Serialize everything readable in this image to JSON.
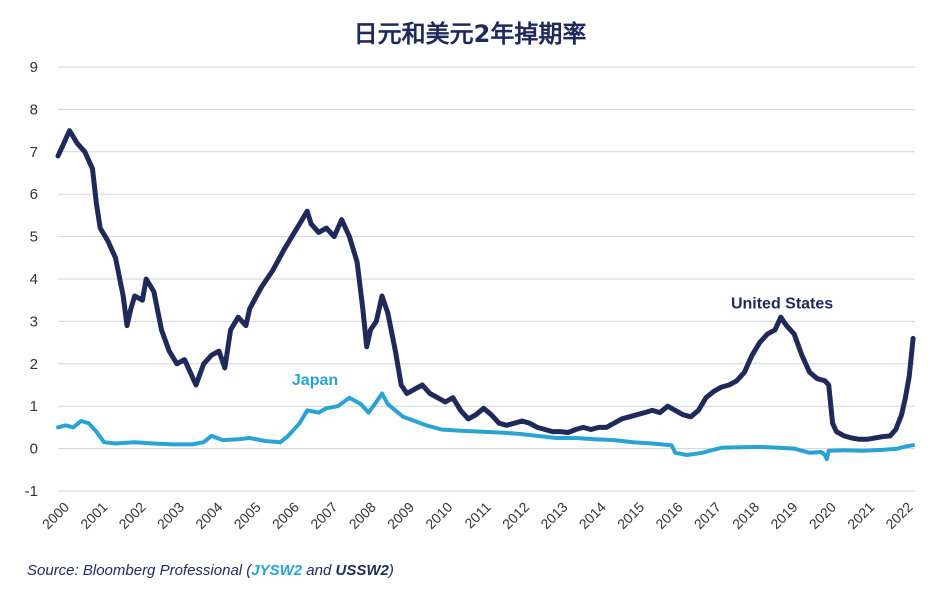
{
  "chart_data": {
    "type": "line",
    "title": "日元和美元2年掉期率",
    "xlabel": "",
    "ylabel": "",
    "ylim": [
      -1,
      9
    ],
    "yticks": [
      "9",
      "8",
      "7",
      "6",
      "5",
      "4",
      "3",
      "2",
      "1",
      "0",
      "-1"
    ],
    "xticks": [
      "2000",
      "2001",
      "2002",
      "2003",
      "2004",
      "2005",
      "2006",
      "2007",
      "2008",
      "2009",
      "2010",
      "2011",
      "2012",
      "2013",
      "2014",
      "2015",
      "2016",
      "2017",
      "2018",
      "2019",
      "2020",
      "2021",
      "2022"
    ],
    "grid": true,
    "series": [
      {
        "name": "United States",
        "color": "#1f2a5a",
        "points": [
          [
            2000.0,
            6.9
          ],
          [
            2000.15,
            7.2
          ],
          [
            2000.3,
            7.5
          ],
          [
            2000.5,
            7.2
          ],
          [
            2000.7,
            7.0
          ],
          [
            2000.9,
            6.6
          ],
          [
            2001.0,
            5.8
          ],
          [
            2001.1,
            5.2
          ],
          [
            2001.3,
            4.9
          ],
          [
            2001.5,
            4.5
          ],
          [
            2001.7,
            3.6
          ],
          [
            2001.8,
            2.9
          ],
          [
            2001.9,
            3.3
          ],
          [
            2002.0,
            3.6
          ],
          [
            2002.2,
            3.5
          ],
          [
            2002.3,
            4.0
          ],
          [
            2002.5,
            3.7
          ],
          [
            2002.7,
            2.8
          ],
          [
            2002.9,
            2.3
          ],
          [
            2003.1,
            2.0
          ],
          [
            2003.3,
            2.1
          ],
          [
            2003.45,
            1.8
          ],
          [
            2003.6,
            1.5
          ],
          [
            2003.8,
            2.0
          ],
          [
            2004.0,
            2.2
          ],
          [
            2004.2,
            2.3
          ],
          [
            2004.35,
            1.9
          ],
          [
            2004.5,
            2.8
          ],
          [
            2004.7,
            3.1
          ],
          [
            2004.9,
            2.9
          ],
          [
            2005.0,
            3.3
          ],
          [
            2005.3,
            3.8
          ],
          [
            2005.6,
            4.2
          ],
          [
            2005.9,
            4.7
          ],
          [
            2006.1,
            5.0
          ],
          [
            2006.3,
            5.3
          ],
          [
            2006.5,
            5.6
          ],
          [
            2006.6,
            5.3
          ],
          [
            2006.8,
            5.1
          ],
          [
            2007.0,
            5.2
          ],
          [
            2007.2,
            5.0
          ],
          [
            2007.4,
            5.4
          ],
          [
            2007.6,
            5.0
          ],
          [
            2007.8,
            4.4
          ],
          [
            2007.95,
            3.3
          ],
          [
            2008.05,
            2.4
          ],
          [
            2008.15,
            2.8
          ],
          [
            2008.3,
            3.0
          ],
          [
            2008.45,
            3.6
          ],
          [
            2008.6,
            3.2
          ],
          [
            2008.8,
            2.3
          ],
          [
            2008.95,
            1.5
          ],
          [
            2009.1,
            1.3
          ],
          [
            2009.3,
            1.4
          ],
          [
            2009.5,
            1.5
          ],
          [
            2009.7,
            1.3
          ],
          [
            2009.9,
            1.2
          ],
          [
            2010.1,
            1.1
          ],
          [
            2010.3,
            1.2
          ],
          [
            2010.5,
            0.9
          ],
          [
            2010.7,
            0.7
          ],
          [
            2010.9,
            0.8
          ],
          [
            2011.1,
            0.95
          ],
          [
            2011.3,
            0.8
          ],
          [
            2011.5,
            0.6
          ],
          [
            2011.7,
            0.55
          ],
          [
            2011.9,
            0.6
          ],
          [
            2012.1,
            0.65
          ],
          [
            2012.3,
            0.6
          ],
          [
            2012.5,
            0.5
          ],
          [
            2012.7,
            0.45
          ],
          [
            2012.9,
            0.4
          ],
          [
            2013.1,
            0.4
          ],
          [
            2013.3,
            0.38
          ],
          [
            2013.5,
            0.45
          ],
          [
            2013.7,
            0.5
          ],
          [
            2013.9,
            0.45
          ],
          [
            2014.1,
            0.5
          ],
          [
            2014.3,
            0.5
          ],
          [
            2014.5,
            0.6
          ],
          [
            2014.7,
            0.7
          ],
          [
            2014.9,
            0.75
          ],
          [
            2015.1,
            0.8
          ],
          [
            2015.3,
            0.85
          ],
          [
            2015.5,
            0.9
          ],
          [
            2015.7,
            0.85
          ],
          [
            2015.9,
            1.0
          ],
          [
            2016.1,
            0.9
          ],
          [
            2016.3,
            0.8
          ],
          [
            2016.5,
            0.75
          ],
          [
            2016.7,
            0.9
          ],
          [
            2016.9,
            1.2
          ],
          [
            2017.1,
            1.35
          ],
          [
            2017.3,
            1.45
          ],
          [
            2017.5,
            1.5
          ],
          [
            2017.7,
            1.6
          ],
          [
            2017.9,
            1.8
          ],
          [
            2018.1,
            2.2
          ],
          [
            2018.3,
            2.5
          ],
          [
            2018.5,
            2.7
          ],
          [
            2018.7,
            2.8
          ],
          [
            2018.85,
            3.1
          ],
          [
            2019.0,
            2.9
          ],
          [
            2019.2,
            2.7
          ],
          [
            2019.4,
            2.2
          ],
          [
            2019.6,
            1.8
          ],
          [
            2019.8,
            1.65
          ],
          [
            2020.0,
            1.6
          ],
          [
            2020.1,
            1.5
          ],
          [
            2020.2,
            0.6
          ],
          [
            2020.3,
            0.4
          ],
          [
            2020.5,
            0.3
          ],
          [
            2020.7,
            0.25
          ],
          [
            2020.9,
            0.22
          ],
          [
            2021.1,
            0.22
          ],
          [
            2021.3,
            0.25
          ],
          [
            2021.5,
            0.28
          ],
          [
            2021.7,
            0.3
          ],
          [
            2021.85,
            0.45
          ],
          [
            2022.0,
            0.8
          ],
          [
            2022.1,
            1.2
          ],
          [
            2022.2,
            1.7
          ],
          [
            2022.3,
            2.6
          ]
        ]
      },
      {
        "name": "Japan",
        "color": "#29a3d6",
        "points": [
          [
            2000.0,
            0.5
          ],
          [
            2000.2,
            0.55
          ],
          [
            2000.4,
            0.5
          ],
          [
            2000.6,
            0.65
          ],
          [
            2000.8,
            0.6
          ],
          [
            2001.0,
            0.4
          ],
          [
            2001.2,
            0.15
          ],
          [
            2001.5,
            0.12
          ],
          [
            2002.0,
            0.15
          ],
          [
            2002.5,
            0.12
          ],
          [
            2003.0,
            0.1
          ],
          [
            2003.5,
            0.1
          ],
          [
            2003.8,
            0.15
          ],
          [
            2004.0,
            0.3
          ],
          [
            2004.3,
            0.2
          ],
          [
            2004.7,
            0.22
          ],
          [
            2005.0,
            0.25
          ],
          [
            2005.4,
            0.18
          ],
          [
            2005.8,
            0.15
          ],
          [
            2006.0,
            0.3
          ],
          [
            2006.3,
            0.6
          ],
          [
            2006.5,
            0.9
          ],
          [
            2006.8,
            0.85
          ],
          [
            2007.0,
            0.95
          ],
          [
            2007.3,
            1.0
          ],
          [
            2007.6,
            1.2
          ],
          [
            2007.9,
            1.05
          ],
          [
            2008.1,
            0.85
          ],
          [
            2008.3,
            1.1
          ],
          [
            2008.45,
            1.3
          ],
          [
            2008.6,
            1.05
          ],
          [
            2008.8,
            0.9
          ],
          [
            2009.0,
            0.75
          ],
          [
            2009.3,
            0.65
          ],
          [
            2009.6,
            0.55
          ],
          [
            2010.0,
            0.45
          ],
          [
            2010.5,
            0.42
          ],
          [
            2011.0,
            0.4
          ],
          [
            2011.5,
            0.38
          ],
          [
            2012.0,
            0.35
          ],
          [
            2012.5,
            0.3
          ],
          [
            2013.0,
            0.25
          ],
          [
            2013.5,
            0.25
          ],
          [
            2014.0,
            0.22
          ],
          [
            2014.5,
            0.2
          ],
          [
            2015.0,
            0.15
          ],
          [
            2015.5,
            0.12
          ],
          [
            2016.0,
            0.08
          ],
          [
            2016.1,
            -0.1
          ],
          [
            2016.4,
            -0.15
          ],
          [
            2016.8,
            -0.1
          ],
          [
            2017.0,
            -0.05
          ],
          [
            2017.3,
            0.02
          ],
          [
            2017.8,
            0.03
          ],
          [
            2018.3,
            0.04
          ],
          [
            2018.8,
            0.02
          ],
          [
            2019.2,
            0.0
          ],
          [
            2019.6,
            -0.1
          ],
          [
            2019.9,
            -0.08
          ],
          [
            2020.0,
            -0.15
          ],
          [
            2020.05,
            -0.25
          ],
          [
            2020.1,
            -0.05
          ],
          [
            2020.5,
            -0.04
          ],
          [
            2021.0,
            -0.05
          ],
          [
            2021.5,
            -0.03
          ],
          [
            2021.9,
            0.0
          ],
          [
            2022.1,
            0.05
          ],
          [
            2022.3,
            0.08
          ]
        ]
      }
    ],
    "annotations": [
      {
        "text": "United States",
        "x": 2017.55,
        "y": 3.3
      },
      {
        "text": "Japan",
        "x": 2006.1,
        "y": 1.5
      }
    ]
  },
  "source": {
    "prefix": "Source: Bloomberg Professional (",
    "code_jp": "JYSW2",
    "middle": " and ",
    "code_us": "USSW2",
    "suffix": ")"
  }
}
